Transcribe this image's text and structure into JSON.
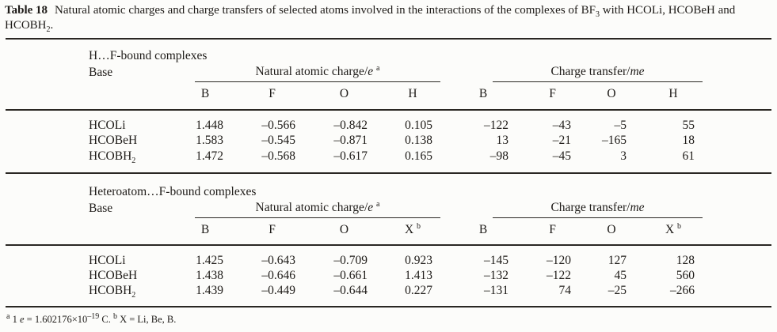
{
  "caption": {
    "label": "Table 18",
    "text_1": "Natural atomic charges and charge transfers of selected atoms involved in the interactions of the complexes of BF",
    "sub_1": "3",
    "text_2": " with HCOLi, HCOBeH and HCOBH",
    "sub_2": "2",
    "text_3": "."
  },
  "sections": [
    {
      "heading": "H…F-bound complexes",
      "base_label": "Base",
      "charge_group": {
        "title": "Natural atomic charge/",
        "unit_italic": "e",
        "sup": "a"
      },
      "transfer_group": {
        "title": "Charge transfer/",
        "unit_italic": "me",
        "sup": ""
      },
      "charge_cols": [
        {
          "t": "B",
          "sup": ""
        },
        {
          "t": "F",
          "sup": ""
        },
        {
          "t": "O",
          "sup": ""
        },
        {
          "t": "H",
          "sup": ""
        }
      ],
      "transfer_cols": [
        {
          "t": "B",
          "sup": ""
        },
        {
          "t": "F",
          "sup": ""
        },
        {
          "t": "O",
          "sup": ""
        },
        {
          "t": "H",
          "sup": ""
        }
      ],
      "rows": [
        {
          "base": "HCOLi",
          "base_sub": "",
          "charges": [
            "1.448",
            "–0.566",
            "–0.842",
            "0.105"
          ],
          "transfers": [
            "–122",
            "–43",
            "–5",
            "55"
          ]
        },
        {
          "base": "HCOBeH",
          "base_sub": "",
          "charges": [
            "1.583",
            "–0.545",
            "–0.871",
            "0.138"
          ],
          "transfers": [
            "13",
            "–21",
            "–165",
            "18"
          ]
        },
        {
          "base": "HCOBH",
          "base_sub": "2",
          "charges": [
            "1.472",
            "–0.568",
            "–0.617",
            "0.165"
          ],
          "transfers": [
            "–98",
            "–45",
            "3",
            "61"
          ]
        }
      ]
    },
    {
      "heading": "Heteroatom…F-bound complexes",
      "base_label": "Base",
      "charge_group": {
        "title": "Natural atomic charge/",
        "unit_italic": "e",
        "sup": "a"
      },
      "transfer_group": {
        "title": "Charge transfer/",
        "unit_italic": "me",
        "sup": ""
      },
      "charge_cols": [
        {
          "t": "B",
          "sup": ""
        },
        {
          "t": "F",
          "sup": ""
        },
        {
          "t": "O",
          "sup": ""
        },
        {
          "t": "X",
          "sup": "b"
        }
      ],
      "transfer_cols": [
        {
          "t": "B",
          "sup": ""
        },
        {
          "t": "F",
          "sup": ""
        },
        {
          "t": "O",
          "sup": ""
        },
        {
          "t": "X",
          "sup": "b"
        }
      ],
      "rows": [
        {
          "base": "HCOLi",
          "base_sub": "",
          "charges": [
            "1.425",
            "–0.643",
            "–0.709",
            "0.923"
          ],
          "transfers": [
            "–145",
            "–120",
            "127",
            "128"
          ]
        },
        {
          "base": "HCOBeH",
          "base_sub": "",
          "charges": [
            "1.438",
            "–0.646",
            "–0.661",
            "1.413"
          ],
          "transfers": [
            "–132",
            "–122",
            "45",
            "560"
          ]
        },
        {
          "base": "HCOBH",
          "base_sub": "2",
          "charges": [
            "1.439",
            "–0.449",
            "–0.644",
            "0.227"
          ],
          "transfers": [
            "–131",
            "74",
            "–25",
            "–266"
          ]
        }
      ]
    }
  ],
  "footnote": {
    "sup_a": "a",
    "text_1": " 1 ",
    "italic_e": "e",
    "text_2": " = 1.602176×10",
    "sup_exp": "–19",
    "text_3": " C. ",
    "sup_b": "b",
    "text_4": " X = Li, Be, B."
  }
}
